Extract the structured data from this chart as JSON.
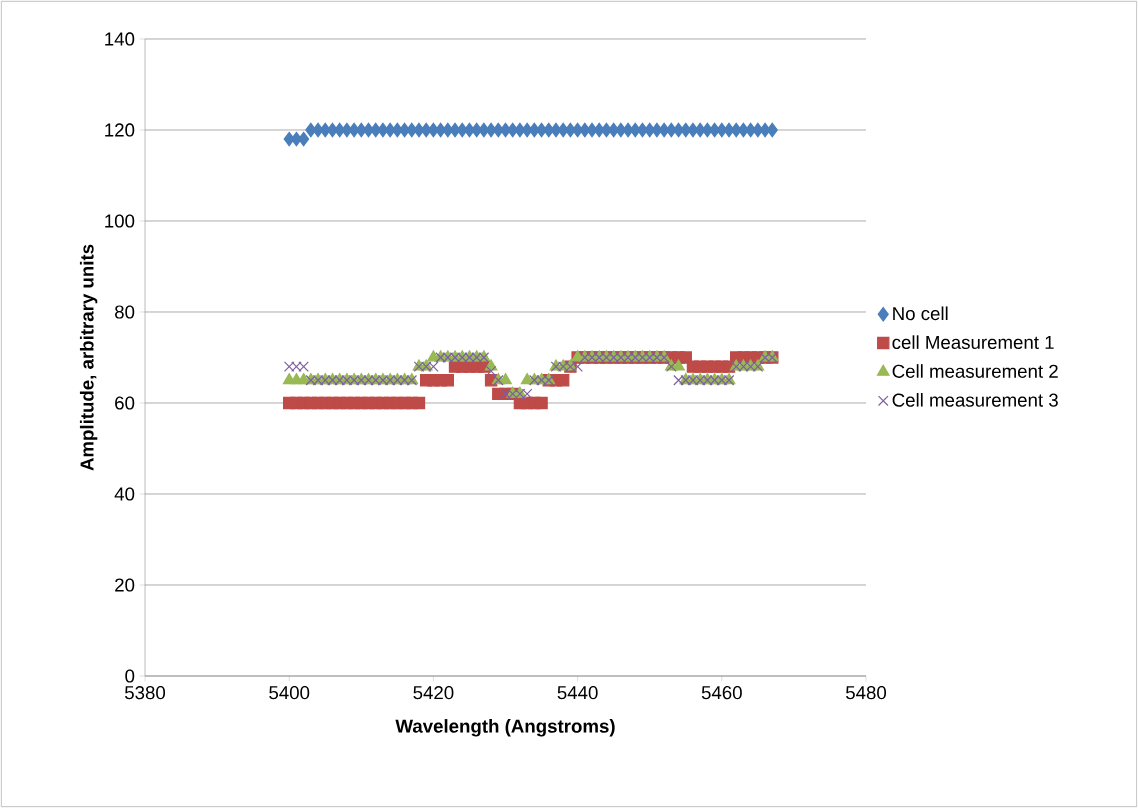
{
  "chart_data": {
    "type": "scatter",
    "xlabel": "Wavelength (Angstroms)",
    "ylabel": "Amplitude, arbitrary units",
    "x": [
      5400,
      5401,
      5402,
      5403,
      5404,
      5405,
      5406,
      5407,
      5408,
      5409,
      5410,
      5411,
      5412,
      5413,
      5414,
      5415,
      5416,
      5417,
      5418,
      5419,
      5420,
      5421,
      5422,
      5423,
      5424,
      5425,
      5426,
      5427,
      5428,
      5429,
      5430,
      5431,
      5432,
      5433,
      5434,
      5435,
      5436,
      5437,
      5438,
      5439,
      5440,
      5441,
      5442,
      5443,
      5444,
      5445,
      5446,
      5447,
      5448,
      5449,
      5450,
      5451,
      5452,
      5453,
      5454,
      5455,
      5456,
      5457,
      5458,
      5459,
      5460,
      5461,
      5462,
      5463,
      5464,
      5465,
      5466,
      5467
    ],
    "series": [
      {
        "name": "No cell",
        "color": "#4a7ebb",
        "marker": "diamond",
        "values": [
          118,
          118,
          118,
          120,
          120,
          120,
          120,
          120,
          120,
          120,
          120,
          120,
          120,
          120,
          120,
          120,
          120,
          120,
          120,
          120,
          120,
          120,
          120,
          120,
          120,
          120,
          120,
          120,
          120,
          120,
          120,
          120,
          120,
          120,
          120,
          120,
          120,
          120,
          120,
          120,
          120,
          120,
          120,
          120,
          120,
          120,
          120,
          120,
          120,
          120,
          120,
          120,
          120,
          120,
          120,
          120,
          120,
          120,
          120,
          120,
          120,
          120,
          120,
          120,
          120,
          120,
          120,
          120
        ]
      },
      {
        "name": "cell Measurement 1",
        "color": "#be4b48",
        "marker": "square",
        "values": [
          60,
          60,
          60,
          60,
          60,
          60,
          60,
          60,
          60,
          60,
          60,
          60,
          60,
          60,
          60,
          60,
          60,
          60,
          60,
          65,
          65,
          65,
          65,
          68,
          68,
          68,
          68,
          68,
          65,
          62,
          62,
          62,
          60,
          60,
          60,
          60,
          65,
          65,
          65,
          68,
          70,
          70,
          70,
          70,
          70,
          70,
          70,
          70,
          70,
          70,
          70,
          70,
          70,
          70,
          70,
          70,
          68,
          68,
          68,
          68,
          68,
          68,
          70,
          70,
          70,
          70,
          70,
          70
        ]
      },
      {
        "name": "Cell measurement 2",
        "color": "#98b954",
        "marker": "triangle",
        "values": [
          65,
          65,
          65,
          65,
          65,
          65,
          65,
          65,
          65,
          65,
          65,
          65,
          65,
          65,
          65,
          65,
          65,
          65,
          68,
          68,
          70,
          70,
          70,
          70,
          70,
          70,
          70,
          70,
          68,
          65,
          65,
          62,
          62,
          65,
          65,
          65,
          65,
          68,
          68,
          68,
          70,
          70,
          70,
          70,
          70,
          70,
          70,
          70,
          70,
          70,
          70,
          70,
          70,
          68,
          68,
          65,
          65,
          65,
          65,
          65,
          65,
          65,
          68,
          68,
          68,
          68,
          70,
          70
        ]
      },
      {
        "name": "Cell measurement 3",
        "color": "#7d5fa0",
        "marker": "cross",
        "values": [
          68,
          68,
          68,
          65,
          65,
          65,
          65,
          65,
          65,
          65,
          65,
          65,
          65,
          65,
          65,
          65,
          65,
          65,
          68,
          68,
          68,
          70,
          70,
          70,
          70,
          70,
          70,
          70,
          67,
          65,
          62,
          62,
          62,
          62,
          65,
          65,
          65,
          68,
          68,
          68,
          68,
          70,
          70,
          70,
          70,
          70,
          70,
          70,
          70,
          70,
          70,
          70,
          70,
          68,
          65,
          65,
          65,
          65,
          65,
          65,
          65,
          65,
          68,
          68,
          68,
          68,
          70,
          70
        ]
      }
    ],
    "xlim": [
      5380,
      5480
    ],
    "xticks": [
      5380,
      5400,
      5420,
      5440,
      5460,
      5480
    ],
    "ylim": [
      0,
      140
    ],
    "yticks": [
      0,
      20,
      40,
      60,
      80,
      100,
      120,
      140
    ],
    "grid": "y",
    "legend": "right"
  }
}
